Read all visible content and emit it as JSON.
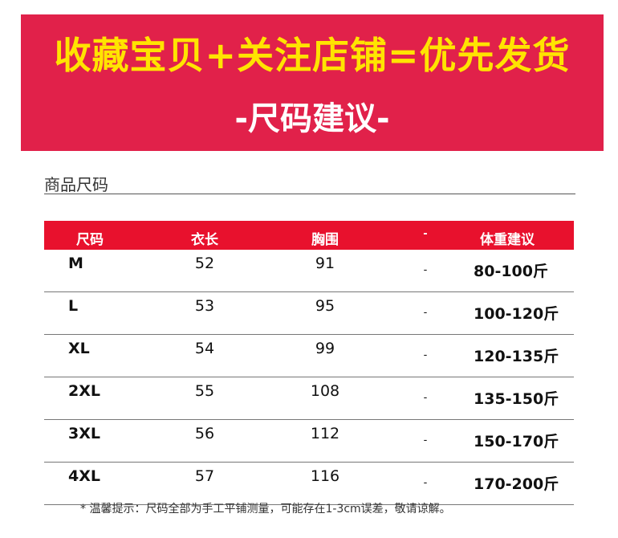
{
  "banner": {
    "line1": "收藏宝贝+关注店铺=优先发货",
    "line2": "-尺码建议-"
  },
  "section": {
    "title": "商品尺码"
  },
  "table": {
    "headers": [
      "尺码",
      "衣长",
      "胸围",
      "-",
      "体重建议"
    ],
    "rows": [
      {
        "size": "M",
        "length": "52",
        "chest": "91",
        "dash": "-",
        "weight": "80-100斤"
      },
      {
        "size": "L",
        "length": "53",
        "chest": "95",
        "dash": "-",
        "weight": "100-120斤"
      },
      {
        "size": "XL",
        "length": "54",
        "chest": "99",
        "dash": "-",
        "weight": "120-135斤"
      },
      {
        "size": "2XL",
        "length": "55",
        "chest": "108",
        "dash": "-",
        "weight": "135-150斤"
      },
      {
        "size": "3XL",
        "length": "56",
        "chest": "112",
        "dash": "-",
        "weight": "150-170斤"
      },
      {
        "size": "4XL",
        "length": "57",
        "chest": "116",
        "dash": "-",
        "weight": "170-200斤"
      }
    ]
  },
  "note": "* 温馨提示：尺码全部为手工平铺测量，可能存在1-3cm误差，敬请谅解。",
  "colors": {
    "banner_bg": "#e1214a",
    "banner_text_highlight": "#ffe400",
    "header_bg": "#e8112d"
  }
}
